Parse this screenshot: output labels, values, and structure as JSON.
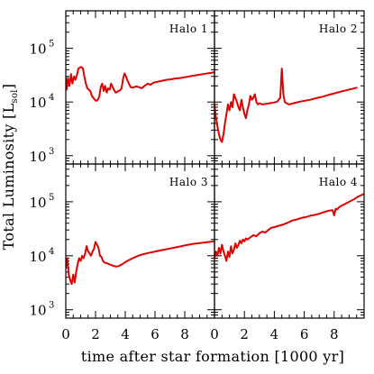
{
  "chart_data": {
    "type": "line",
    "xlabel": "time after star formation [1000 yr]",
    "ylabel": {
      "main": "Total Luminosity [L",
      "sub": "sol",
      "close": "]"
    },
    "xlim": [
      0,
      10
    ],
    "ylim": [
      700,
      500000
    ],
    "yscale": "log",
    "x_ticks": [
      0,
      2,
      4,
      6,
      8
    ],
    "y_ticks": [
      {
        "value": 1000,
        "base": "10",
        "exp": "3"
      },
      {
        "value": 10000,
        "base": "10",
        "exp": "4"
      },
      {
        "value": 100000,
        "base": "10",
        "exp": "5"
      }
    ],
    "color": "#e00000",
    "panels": [
      {
        "name": "Halo 1",
        "x": [
          0,
          0.05,
          0.15,
          0.25,
          0.35,
          0.45,
          0.55,
          0.65,
          0.75,
          0.85,
          0.95,
          1.05,
          1.15,
          1.25,
          1.35,
          1.45,
          1.55,
          1.65,
          1.75,
          1.85,
          1.95,
          2.05,
          2.15,
          2.25,
          2.35,
          2.45,
          2.55,
          2.65,
          2.75,
          2.85,
          2.95,
          3.05,
          3.15,
          3.25,
          3.35,
          3.45,
          3.55,
          3.65,
          3.75,
          3.85,
          3.95,
          4.05,
          4.15,
          4.25,
          4.35,
          4.5,
          4.7,
          4.9,
          5.1,
          5.3,
          5.5,
          5.7,
          5.9,
          6.2,
          6.5,
          6.8,
          7.1,
          7.4,
          7.7,
          8.0,
          8.3,
          8.6,
          8.9,
          9.2,
          9.5,
          9.8,
          10.0
        ],
        "y": [
          30000,
          17000,
          28000,
          20000,
          33000,
          22000,
          30000,
          26000,
          32000,
          42000,
          44000,
          45000,
          42000,
          30000,
          22000,
          18000,
          17000,
          16000,
          13000,
          12000,
          11000,
          10500,
          11000,
          12500,
          19000,
          22000,
          16000,
          20000,
          15000,
          18000,
          17000,
          22000,
          19000,
          16500,
          15000,
          15500,
          16000,
          16500,
          18000,
          27000,
          34000,
          30000,
          25000,
          22000,
          19000,
          18500,
          19500,
          19000,
          18000,
          20000,
          22000,
          21000,
          23000,
          24000,
          25000,
          26000,
          26500,
          27500,
          28000,
          29000,
          30000,
          31000,
          32000,
          33000,
          34000,
          35000,
          36000
        ]
      },
      {
        "name": "Halo 2",
        "x": [
          0,
          0.1,
          0.2,
          0.3,
          0.4,
          0.5,
          0.6,
          0.7,
          0.8,
          0.9,
          1.0,
          1.1,
          1.2,
          1.3,
          1.4,
          1.5,
          1.6,
          1.7,
          1.8,
          1.9,
          2.0,
          2.1,
          2.2,
          2.3,
          2.4,
          2.5,
          2.6,
          2.7,
          2.8,
          2.9,
          3.0,
          3.2,
          3.4,
          3.6,
          3.8,
          4.0,
          4.2,
          4.4,
          4.5,
          4.6,
          4.7,
          4.8,
          5.0,
          5.3,
          5.6,
          6.0,
          6.4,
          6.8,
          7.2,
          7.6,
          8.0,
          8.4,
          8.8,
          9.2,
          9.5
        ],
        "y": [
          9000,
          5000,
          3500,
          2500,
          2000,
          1800,
          2500,
          4000,
          6000,
          9000,
          7000,
          10000,
          8000,
          14000,
          12000,
          10000,
          8000,
          7000,
          11000,
          8000,
          6000,
          5000,
          7000,
          9000,
          13000,
          11000,
          12000,
          14000,
          10000,
          9000,
          9500,
          9000,
          9200,
          9400,
          9600,
          9800,
          10200,
          12000,
          42000,
          14000,
          10000,
          9500,
          9000,
          9500,
          10000,
          10500,
          11000,
          11800,
          12500,
          13500,
          14500,
          15500,
          16500,
          17500,
          18500
        ]
      },
      {
        "name": "Halo 3",
        "x": [
          0,
          0.1,
          0.2,
          0.3,
          0.4,
          0.5,
          0.6,
          0.7,
          0.8,
          0.9,
          1.0,
          1.1,
          1.2,
          1.3,
          1.4,
          1.5,
          1.6,
          1.7,
          1.8,
          1.9,
          2.0,
          2.1,
          2.2,
          2.3,
          2.4,
          2.5,
          2.6,
          2.8,
          3.0,
          3.2,
          3.4,
          3.6,
          3.8,
          4.0,
          4.2,
          4.5,
          4.8,
          5.1,
          5.4,
          5.7,
          6.0,
          6.5,
          7.0,
          7.5,
          8.0,
          8.5,
          9.0,
          9.5,
          10.0
        ],
        "y": [
          6000,
          9000,
          4500,
          3500,
          3000,
          4500,
          3200,
          5000,
          7000,
          9000,
          8000,
          10000,
          9000,
          11000,
          15000,
          12000,
          11000,
          10000,
          12000,
          13500,
          18000,
          16000,
          14000,
          10000,
          9500,
          8000,
          7500,
          7200,
          6800,
          6500,
          6300,
          6500,
          7000,
          7600,
          8200,
          9000,
          9800,
          10500,
          11000,
          11500,
          12000,
          12800,
          13600,
          14500,
          15500,
          16500,
          17200,
          17800,
          18500
        ]
      },
      {
        "name": "Halo 4",
        "x": [
          0,
          0.1,
          0.2,
          0.3,
          0.4,
          0.5,
          0.6,
          0.7,
          0.8,
          0.9,
          1.0,
          1.1,
          1.2,
          1.3,
          1.4,
          1.5,
          1.6,
          1.7,
          1.8,
          1.9,
          2.0,
          2.1,
          2.2,
          2.4,
          2.6,
          2.8,
          3.0,
          3.2,
          3.4,
          3.6,
          3.8,
          4.0,
          4.3,
          4.6,
          4.9,
          5.2,
          5.5,
          5.8,
          6.1,
          6.4,
          6.7,
          7.0,
          7.3,
          7.6,
          7.9,
          8.0,
          8.1,
          8.2,
          8.3,
          8.5,
          8.7,
          9.0,
          9.3,
          9.6,
          10.0
        ],
        "y": [
          9000,
          12000,
          10000,
          14000,
          11000,
          16000,
          12000,
          10000,
          8000,
          12000,
          9500,
          15000,
          11000,
          13000,
          17000,
          14000,
          16000,
          19000,
          17000,
          20000,
          18500,
          21000,
          20000,
          22000,
          24000,
          23000,
          26000,
          28000,
          27000,
          30000,
          33000,
          34000,
          36000,
          38000,
          41000,
          45000,
          47000,
          50000,
          52000,
          55000,
          57000,
          60000,
          64000,
          68000,
          70000,
          56000,
          74000,
          72000,
          78000,
          85000,
          90000,
          100000,
          110000,
          125000,
          140000
        ]
      }
    ]
  }
}
